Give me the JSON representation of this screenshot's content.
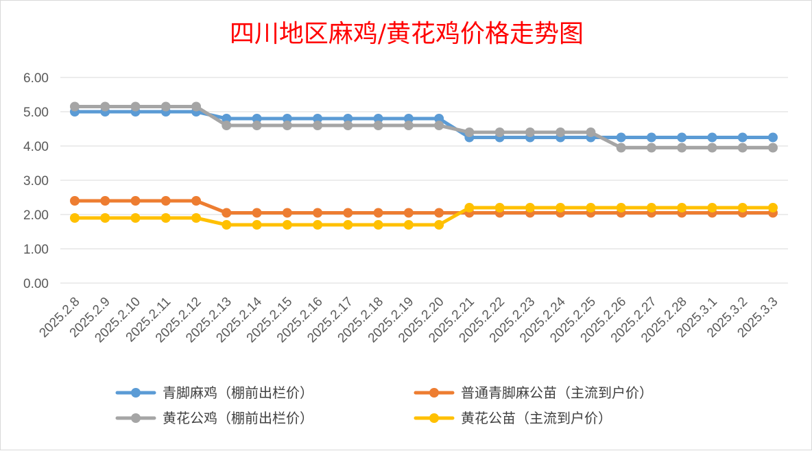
{
  "chart_data": {
    "type": "line",
    "title": "四川地区麻鸡/黄花鸡价格走势图",
    "xlabel": "",
    "ylabel": "",
    "ylim": [
      0,
      6
    ],
    "yticks": [
      "0.00",
      "1.00",
      "2.00",
      "3.00",
      "4.00",
      "5.00",
      "6.00"
    ],
    "grid": true,
    "legend_position": "bottom",
    "categories": [
      "2025.2.8",
      "2025.2.9",
      "2025.2.10",
      "2025.2.11",
      "2025.2.12",
      "2025.2.13",
      "2025.2.14",
      "2025.2.15",
      "2025.2.16",
      "2025.2.17",
      "2025.2.18",
      "2025.2.19",
      "2025.2.20",
      "2025.2.21",
      "2025.2.22",
      "2025.2.23",
      "2025.2.24",
      "2025.2.25",
      "2025.2.26",
      "2025.2.27",
      "2025.2.28",
      "2025.3.1",
      "2025.3.2",
      "2025.3.3"
    ],
    "series": [
      {
        "name": "青脚麻鸡（棚前出栏价）",
        "color": "#5b9bd5",
        "values": [
          5.0,
          5.0,
          5.0,
          5.0,
          5.0,
          4.8,
          4.8,
          4.8,
          4.8,
          4.8,
          4.8,
          4.8,
          4.8,
          4.25,
          4.25,
          4.25,
          4.25,
          4.25,
          4.25,
          4.25,
          4.25,
          4.25,
          4.25,
          4.25
        ]
      },
      {
        "name": "普通青脚麻公苗（主流到户价）",
        "color": "#ed7d31",
        "values": [
          2.4,
          2.4,
          2.4,
          2.4,
          2.4,
          2.05,
          2.05,
          2.05,
          2.05,
          2.05,
          2.05,
          2.05,
          2.05,
          2.05,
          2.05,
          2.05,
          2.05,
          2.05,
          2.05,
          2.05,
          2.05,
          2.05,
          2.05,
          2.05
        ]
      },
      {
        "name": "黄花公鸡（棚前出栏价）",
        "color": "#a5a5a5",
        "values": [
          5.15,
          5.15,
          5.15,
          5.15,
          5.15,
          4.6,
          4.6,
          4.6,
          4.6,
          4.6,
          4.6,
          4.6,
          4.6,
          4.4,
          4.4,
          4.4,
          4.4,
          4.4,
          3.95,
          3.95,
          3.95,
          3.95,
          3.95,
          3.95
        ]
      },
      {
        "name": "黄花公苗（主流到户价）",
        "color": "#ffc000",
        "values": [
          1.9,
          1.9,
          1.9,
          1.9,
          1.9,
          1.7,
          1.7,
          1.7,
          1.7,
          1.7,
          1.7,
          1.7,
          1.7,
          2.2,
          2.2,
          2.2,
          2.2,
          2.2,
          2.2,
          2.2,
          2.2,
          2.2,
          2.2,
          2.2
        ]
      }
    ]
  }
}
